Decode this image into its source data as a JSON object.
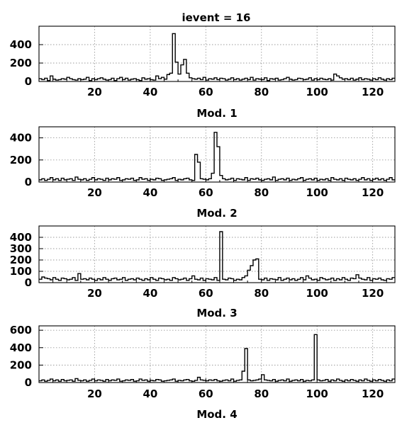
{
  "figure_title": "ievent = 16",
  "chart_data": [
    {
      "type": "step-histogram",
      "title": "ievent = 16",
      "xlabel": "Mod. 1",
      "ylabel": "",
      "xlim": [
        0,
        128
      ],
      "ylim": [
        0,
        600
      ],
      "xticks": [
        20,
        40,
        60,
        80,
        100,
        120
      ],
      "yticks": [
        0,
        200,
        400
      ],
      "grid": true,
      "series": [
        {
          "x_start": 0,
          "bin_width": 1,
          "values": [
            30,
            20,
            35,
            10,
            60,
            25,
            15,
            20,
            30,
            25,
            45,
            30,
            20,
            15,
            30,
            20,
            25,
            45,
            10,
            30,
            20,
            30,
            40,
            25,
            15,
            20,
            35,
            10,
            30,
            45,
            20,
            35,
            15,
            25,
            30,
            20,
            10,
            40,
            25,
            30,
            20,
            15,
            60,
            30,
            45,
            25,
            75,
            90,
            520,
            210,
            80,
            180,
            240,
            90,
            40,
            30,
            25,
            35,
            20,
            45,
            15,
            30,
            25,
            40,
            20,
            35,
            30,
            15,
            25,
            40,
            20,
            30,
            15,
            25,
            35,
            20,
            45,
            15,
            30,
            25,
            20,
            40,
            10,
            30,
            25,
            35,
            15,
            20,
            30,
            45,
            25,
            15,
            20,
            35,
            30,
            20,
            25,
            40,
            15,
            30,
            20,
            35,
            25,
            20,
            30,
            15,
            80,
            60,
            40,
            25,
            30,
            20,
            35,
            15,
            25,
            40,
            20,
            30,
            25,
            15,
            30,
            20,
            40,
            25,
            15,
            30,
            20,
            35
          ]
        }
      ]
    },
    {
      "type": "step-histogram",
      "title": "",
      "xlabel": "Mod. 2",
      "ylabel": "",
      "xlim": [
        0,
        128
      ],
      "ylim": [
        0,
        500
      ],
      "xticks": [
        20,
        40,
        60,
        80,
        100,
        120
      ],
      "yticks": [
        0,
        200,
        400
      ],
      "grid": true,
      "series": [
        {
          "x_start": 0,
          "bin_width": 1,
          "values": [
            20,
            30,
            15,
            25,
            40,
            20,
            30,
            15,
            35,
            20,
            25,
            30,
            15,
            45,
            25,
            20,
            30,
            15,
            25,
            40,
            20,
            30,
            25,
            15,
            35,
            20,
            30,
            25,
            40,
            15,
            20,
            30,
            25,
            35,
            15,
            20,
            40,
            25,
            30,
            15,
            25,
            20,
            35,
            30,
            15,
            20,
            25,
            30,
            40,
            15,
            25,
            20,
            30,
            35,
            20,
            15,
            250,
            180,
            30,
            25,
            20,
            30,
            80,
            450,
            320,
            60,
            30,
            20,
            25,
            35,
            15,
            30,
            25,
            20,
            40,
            15,
            30,
            25,
            35,
            20,
            15,
            25,
            30,
            20,
            45,
            15,
            25,
            30,
            20,
            35,
            15,
            25,
            20,
            30,
            40,
            15,
            25,
            30,
            20,
            35,
            15,
            25,
            20,
            30,
            15,
            40,
            25,
            20,
            30,
            15,
            35,
            25,
            20,
            30,
            15,
            25,
            40,
            20,
            30,
            15,
            25,
            35,
            20,
            30,
            15,
            25,
            40,
            20
          ]
        }
      ]
    },
    {
      "type": "step-histogram",
      "title": "",
      "xlabel": "Mod. 3",
      "ylabel": "",
      "xlim": [
        0,
        128
      ],
      "ylim": [
        0,
        500
      ],
      "xticks": [
        20,
        40,
        60,
        80,
        100,
        120
      ],
      "yticks": [
        0,
        100,
        200,
        300,
        400
      ],
      "grid": true,
      "series": [
        {
          "x_start": 0,
          "bin_width": 1,
          "values": [
            30,
            50,
            40,
            35,
            25,
            45,
            30,
            20,
            40,
            35,
            25,
            30,
            45,
            20,
            80,
            30,
            35,
            25,
            40,
            30,
            20,
            35,
            25,
            45,
            30,
            20,
            35,
            40,
            25,
            30,
            45,
            20,
            30,
            35,
            25,
            40,
            30,
            20,
            35,
            25,
            45,
            30,
            20,
            40,
            35,
            25,
            30,
            20,
            45,
            35,
            25,
            30,
            40,
            20,
            35,
            60,
            30,
            25,
            40,
            20,
            35,
            30,
            25,
            45,
            20,
            450,
            30,
            25,
            40,
            35,
            20,
            30,
            25,
            45,
            60,
            110,
            150,
            200,
            210,
            30,
            25,
            40,
            20,
            35,
            30,
            25,
            45,
            20,
            30,
            40,
            25,
            35,
            20,
            30,
            45,
            25,
            60,
            40,
            25,
            30,
            20,
            45,
            35,
            25,
            30,
            40,
            20,
            35,
            25,
            45,
            30,
            20,
            40,
            35,
            70,
            40,
            30,
            25,
            45,
            20,
            35,
            30,
            40,
            25,
            20,
            35,
            30,
            45
          ]
        }
      ]
    },
    {
      "type": "step-histogram",
      "title": "",
      "xlabel": "Mod. 4",
      "ylabel": "",
      "xlim": [
        0,
        128
      ],
      "ylim": [
        0,
        650
      ],
      "xticks": [
        20,
        40,
        60,
        80,
        100,
        120
      ],
      "yticks": [
        0,
        200,
        400,
        600
      ],
      "grid": true,
      "series": [
        {
          "x_start": 0,
          "bin_width": 1,
          "values": [
            20,
            30,
            15,
            25,
            40,
            20,
            30,
            15,
            35,
            20,
            25,
            30,
            15,
            45,
            25,
            20,
            30,
            15,
            25,
            40,
            20,
            30,
            25,
            15,
            35,
            20,
            30,
            25,
            40,
            15,
            20,
            30,
            25,
            35,
            15,
            20,
            40,
            25,
            30,
            15,
            25,
            20,
            35,
            30,
            15,
            20,
            25,
            30,
            40,
            15,
            25,
            20,
            30,
            35,
            20,
            15,
            25,
            60,
            30,
            25,
            20,
            30,
            25,
            35,
            20,
            15,
            25,
            30,
            20,
            40,
            15,
            25,
            30,
            130,
            390,
            30,
            20,
            25,
            30,
            40,
            90,
            30,
            25,
            20,
            35,
            15,
            25,
            30,
            20,
            40,
            15,
            25,
            30,
            20,
            35,
            15,
            25,
            20,
            30,
            550,
            30,
            20,
            25,
            35,
            15,
            30,
            20,
            40,
            25,
            15,
            30,
            20,
            35,
            25,
            15,
            30,
            20,
            40,
            25,
            15,
            30,
            20,
            35,
            25,
            15,
            30,
            20,
            40
          ]
        }
      ]
    }
  ]
}
